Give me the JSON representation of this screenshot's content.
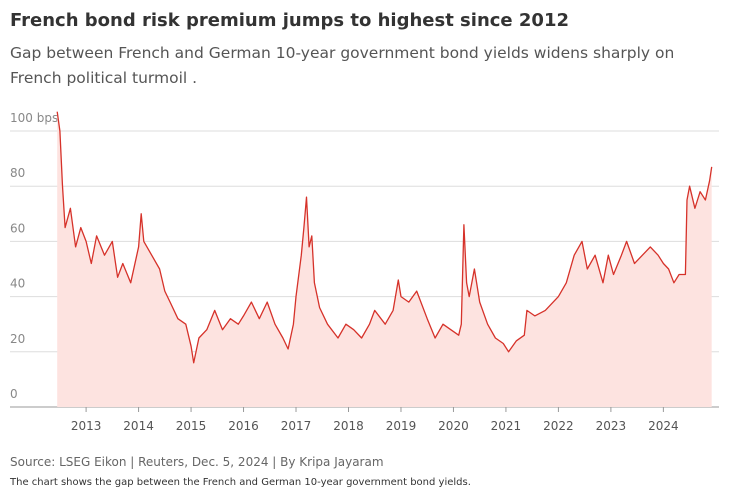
{
  "chart_data": {
    "type": "area",
    "title": "French bond risk premium jumps to highest since 2012",
    "subtitle": "Gap between French and German 10-year government bond yields widens sharply on French political turmoil .",
    "source": "Source: LSEG Eikon | Reuters, Dec. 5, 2024 | By Kripa Jayaram",
    "note": "The chart shows the gap between the French and German 10-year government bond yields.",
    "line_color": "#d6322a",
    "fill_color": "#fde3e0",
    "grid": true,
    "xlim": [
      2011.55,
      2025.06
    ],
    "xticks": [
      2013,
      2014,
      2015,
      2016,
      2017,
      2018,
      2019,
      2020,
      2021,
      2022,
      2023,
      2024
    ],
    "ylim": [
      0,
      100
    ],
    "yticks": [
      0,
      20,
      40,
      60,
      80,
      {
        "value": 100,
        "label": "100 bps"
      }
    ],
    "x": [
      2012.45,
      2012.5,
      2012.55,
      2012.6,
      2012.7,
      2012.8,
      2012.9,
      2013.0,
      2013.1,
      2013.2,
      2013.35,
      2013.5,
      2013.6,
      2013.7,
      2013.85,
      2014.0,
      2014.05,
      2014.1,
      2014.25,
      2014.4,
      2014.5,
      2014.6,
      2014.75,
      2014.9,
      2015.0,
      2015.05,
      2015.15,
      2015.3,
      2015.45,
      2015.6,
      2015.75,
      2015.9,
      2016.0,
      2016.15,
      2016.3,
      2016.45,
      2016.6,
      2016.75,
      2016.85,
      2016.95,
      2017.0,
      2017.1,
      2017.15,
      2017.2,
      2017.25,
      2017.3,
      2017.35,
      2017.45,
      2017.6,
      2017.8,
      2017.95,
      2018.1,
      2018.25,
      2018.4,
      2018.5,
      2018.7,
      2018.85,
      2018.95,
      2019.0,
      2019.15,
      2019.3,
      2019.5,
      2019.65,
      2019.8,
      2019.95,
      2020.1,
      2020.15,
      2020.2,
      2020.25,
      2020.3,
      2020.4,
      2020.5,
      2020.65,
      2020.8,
      2020.95,
      2021.05,
      2021.2,
      2021.35,
      2021.4,
      2021.55,
      2021.75,
      2021.9,
      2022.0,
      2022.15,
      2022.3,
      2022.45,
      2022.55,
      2022.7,
      2022.85,
      2022.95,
      2023.05,
      2023.2,
      2023.3,
      2023.45,
      2023.6,
      2023.75,
      2023.9,
      2024.0,
      2024.1,
      2024.2,
      2024.3,
      2024.42,
      2024.45,
      2024.5,
      2024.6,
      2024.7,
      2024.8,
      2024.88,
      2024.92
    ],
    "values": [
      107,
      100,
      80,
      65,
      72,
      58,
      65,
      60,
      52,
      62,
      55,
      60,
      47,
      52,
      45,
      58,
      70,
      60,
      55,
      50,
      42,
      38,
      32,
      30,
      22,
      16,
      25,
      28,
      35,
      28,
      32,
      30,
      33,
      38,
      32,
      38,
      30,
      25,
      21,
      30,
      40,
      55,
      65,
      76,
      58,
      62,
      45,
      36,
      30,
      25,
      30,
      28,
      25,
      30,
      35,
      30,
      35,
      46,
      40,
      38,
      42,
      32,
      25,
      30,
      28,
      26,
      30,
      66,
      45,
      40,
      50,
      38,
      30,
      25,
      23,
      20,
      24,
      26,
      35,
      33,
      35,
      38,
      40,
      45,
      55,
      60,
      50,
      55,
      45,
      55,
      48,
      55,
      60,
      52,
      55,
      58,
      55,
      52,
      50,
      45,
      48,
      48,
      75,
      80,
      72,
      78,
      75,
      82,
      87
    ]
  }
}
